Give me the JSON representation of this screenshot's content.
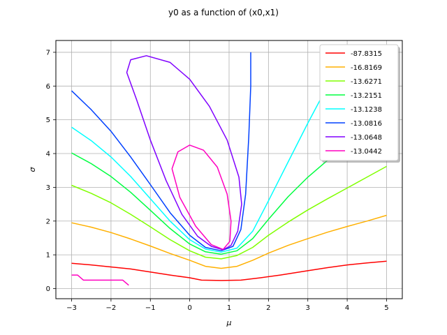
{
  "chart_data": {
    "type": "line",
    "title": "y0 as a function of (x0,x1)",
    "xlabel": "μ",
    "ylabel": "σ",
    "xlim": [
      -3.4,
      5.4
    ],
    "ylim": [
      -0.3,
      7.35
    ],
    "xticks": [
      -3,
      -2,
      -1,
      0,
      1,
      2,
      3,
      4,
      5
    ],
    "xtick_labels": [
      "−3",
      "−2",
      "−1",
      "0",
      "1",
      "2",
      "3",
      "4",
      "5"
    ],
    "yticks": [
      0,
      1,
      2,
      3,
      4,
      5,
      6,
      7
    ],
    "ytick_labels": [
      "0",
      "1",
      "2",
      "3",
      "4",
      "5",
      "6",
      "7"
    ],
    "grid": true,
    "legend_position": "upper right",
    "series": [
      {
        "name": "-87.8315",
        "color": "#ff0000",
        "paths": [
          [
            [
              -3,
              0.75
            ],
            [
              -2.5,
              0.7
            ],
            [
              -2,
              0.64
            ],
            [
              -1.5,
              0.58
            ],
            [
              -1,
              0.49
            ],
            [
              -0.5,
              0.4
            ],
            [
              0,
              0.32
            ],
            [
              0.3,
              0.25
            ],
            [
              0.8,
              0.24
            ],
            [
              1.3,
              0.25
            ],
            [
              1.8,
              0.32
            ],
            [
              2.3,
              0.4
            ],
            [
              3,
              0.53
            ],
            [
              3.5,
              0.62
            ],
            [
              4,
              0.7
            ],
            [
              4.5,
              0.76
            ],
            [
              5,
              0.81
            ]
          ]
        ]
      },
      {
        "name": "-16.8169",
        "color": "#ffb000",
        "paths": [
          [
            [
              -3,
              1.95
            ],
            [
              -2.5,
              1.82
            ],
            [
              -2,
              1.66
            ],
            [
              -1.5,
              1.47
            ],
            [
              -1,
              1.26
            ],
            [
              -0.5,
              1.04
            ],
            [
              0,
              0.84
            ],
            [
              0.4,
              0.66
            ],
            [
              0.8,
              0.6
            ],
            [
              1.2,
              0.66
            ],
            [
              1.6,
              0.84
            ],
            [
              2,
              1.05
            ],
            [
              2.5,
              1.28
            ],
            [
              3,
              1.48
            ],
            [
              3.5,
              1.67
            ],
            [
              4,
              1.84
            ],
            [
              4.5,
              2.0
            ],
            [
              5,
              2.17
            ]
          ]
        ]
      },
      {
        "name": "-13.6271",
        "color": "#80ff00",
        "paths": [
          [
            [
              -3,
              3.06
            ],
            [
              -2.5,
              2.82
            ],
            [
              -2,
              2.54
            ],
            [
              -1.5,
              2.2
            ],
            [
              -1,
              1.83
            ],
            [
              -0.5,
              1.45
            ],
            [
              0,
              1.12
            ],
            [
              0.4,
              0.93
            ],
            [
              0.8,
              0.88
            ],
            [
              1.2,
              0.98
            ],
            [
              1.6,
              1.22
            ],
            [
              2,
              1.58
            ],
            [
              2.5,
              1.97
            ],
            [
              3,
              2.33
            ],
            [
              3.5,
              2.66
            ],
            [
              4,
              2.98
            ],
            [
              4.5,
              3.3
            ],
            [
              5,
              3.62
            ]
          ]
        ]
      },
      {
        "name": "-13.2151",
        "color": "#00ff40",
        "paths": [
          [
            [
              -3,
              4.02
            ],
            [
              -2.5,
              3.7
            ],
            [
              -2,
              3.32
            ],
            [
              -1.5,
              2.85
            ],
            [
              -1,
              2.32
            ],
            [
              -0.5,
              1.78
            ],
            [
              0,
              1.32
            ],
            [
              0.4,
              1.09
            ],
            [
              0.8,
              1.02
            ],
            [
              1.2,
              1.12
            ],
            [
              1.6,
              1.48
            ],
            [
              2,
              2.05
            ],
            [
              2.5,
              2.72
            ],
            [
              3,
              3.3
            ],
            [
              3.5,
              3.8
            ],
            [
              4,
              4.2
            ],
            [
              4.5,
              4.55
            ],
            [
              5,
              4.85
            ]
          ]
        ]
      },
      {
        "name": "-13.1238",
        "color": "#00ffff",
        "paths": [
          [
            [
              -3,
              4.78
            ],
            [
              -2.5,
              4.38
            ],
            [
              -2,
              3.9
            ],
            [
              -1.5,
              3.32
            ],
            [
              -1,
              2.66
            ],
            [
              -0.5,
              2.0
            ],
            [
              0,
              1.45
            ],
            [
              0.4,
              1.17
            ],
            [
              0.8,
              1.08
            ],
            [
              1.2,
              1.2
            ],
            [
              1.6,
              1.7
            ],
            [
              2,
              2.6
            ],
            [
              2.5,
              3.75
            ],
            [
              3,
              4.9
            ],
            [
              3.5,
              6.0
            ],
            [
              3.82,
              6.8
            ]
          ]
        ]
      },
      {
        "name": "-13.0816",
        "color": "#0040ff",
        "paths": [
          [
            [
              -3,
              5.86
            ],
            [
              -2.5,
              5.3
            ],
            [
              -2,
              4.66
            ],
            [
              -1.5,
              3.9
            ],
            [
              -1,
              3.08
            ],
            [
              -0.5,
              2.25
            ],
            [
              0,
              1.58
            ],
            [
              0.4,
              1.22
            ],
            [
              0.8,
              1.12
            ],
            [
              1.1,
              1.25
            ],
            [
              1.3,
              1.75
            ],
            [
              1.42,
              2.8
            ],
            [
              1.5,
              4.5
            ],
            [
              1.55,
              6.0
            ],
            [
              1.55,
              7.0
            ]
          ]
        ]
      },
      {
        "name": "-13.0648",
        "color": "#8000ff",
        "paths": [
          [
            [
              0.85,
              1.15
            ],
            [
              0.55,
              1.25
            ],
            [
              0.2,
              1.55
            ],
            [
              -0.2,
              2.2
            ],
            [
              -0.6,
              3.2
            ],
            [
              -1.0,
              4.4
            ],
            [
              -1.35,
              5.6
            ],
            [
              -1.6,
              6.4
            ],
            [
              -1.5,
              6.78
            ],
            [
              -1.1,
              6.9
            ],
            [
              -0.5,
              6.7
            ],
            [
              0,
              6.2
            ],
            [
              0.5,
              5.4
            ],
            [
              0.95,
              4.4
            ],
            [
              1.25,
              3.3
            ],
            [
              1.32,
              2.5
            ],
            [
              1.22,
              1.7
            ],
            [
              1.05,
              1.28
            ],
            [
              0.85,
              1.15
            ]
          ]
        ]
      },
      {
        "name": "-13.0442",
        "color": "#ff00c0",
        "paths": [
          [
            [
              0.85,
              1.16
            ],
            [
              0.55,
              1.3
            ],
            [
              0.15,
              1.85
            ],
            [
              -0.25,
              2.7
            ],
            [
              -0.45,
              3.55
            ],
            [
              -0.3,
              4.05
            ],
            [
              0,
              4.25
            ],
            [
              0.35,
              4.1
            ],
            [
              0.7,
              3.6
            ],
            [
              0.95,
              2.8
            ],
            [
              1.05,
              2.0
            ],
            [
              1.02,
              1.4
            ],
            [
              0.85,
              1.16
            ]
          ],
          [
            [
              -3,
              0.4
            ],
            [
              -2.85,
              0.4
            ],
            [
              -2.7,
              0.25
            ],
            [
              -2.4,
              0.25
            ],
            [
              -1.7,
              0.25
            ],
            [
              -1.55,
              0.1
            ]
          ]
        ]
      }
    ]
  }
}
